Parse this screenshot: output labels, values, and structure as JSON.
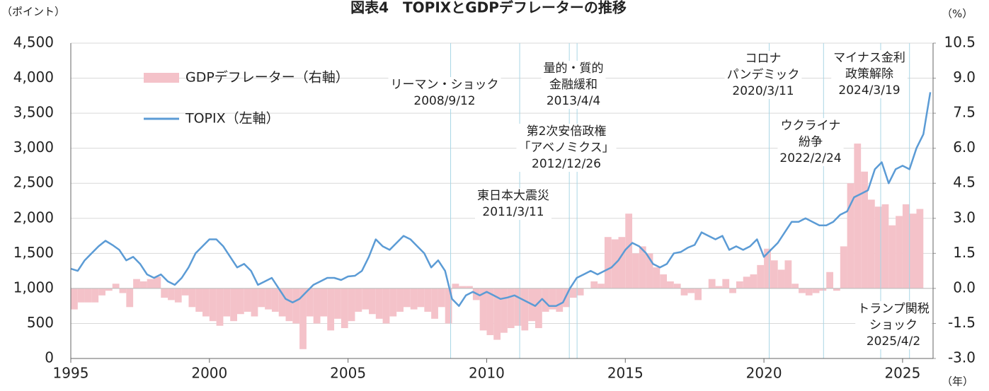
{
  "chart_data": {
    "type": "bar-line",
    "title": "図表4　TOPIXとGDPデフレーターの推移",
    "y_label": "（ポイント）",
    "y2_label": "（%）",
    "x_label": "（年）",
    "xlim": [
      1995,
      2026.1
    ],
    "xticks": [
      1995,
      2000,
      2005,
      2010,
      2015,
      2020,
      2025
    ],
    "ylim": [
      0,
      4500
    ],
    "yticks": [
      0,
      500,
      {
        "value": 1000,
        "label": "1,000"
      },
      {
        "value": 1500,
        "label": "1,500"
      },
      {
        "value": 2000,
        "label": "2,000"
      },
      {
        "value": 2500,
        "label": "2,500"
      },
      {
        "value": 3000,
        "label": "3,000"
      },
      {
        "value": 3500,
        "label": "3,500"
      },
      {
        "value": 4000,
        "label": "4,000"
      },
      {
        "value": 4500,
        "label": "4,500"
      }
    ],
    "y2lim": [
      -3,
      10.5
    ],
    "y2ticks": [
      {
        "value": -3,
        "label": "-3.0"
      },
      -1.5,
      {
        "value": 0,
        "label": "0.0"
      },
      1.5,
      {
        "value": 3,
        "label": "3.0"
      },
      4.5,
      {
        "value": 6,
        "label": "6.0"
      },
      7.5,
      {
        "value": 9,
        "label": "9.0"
      },
      10.5
    ],
    "grid": true,
    "series": [
      {
        "name": "GDPデフレーター（右軸）",
        "type": "bar",
        "axis": "y2",
        "color": "#f4c2c9",
        "x": [
          1995,
          1995.25,
          1995.5,
          1995.75,
          1996,
          1996.25,
          1996.5,
          1996.75,
          1997,
          1997.25,
          1997.5,
          1997.75,
          1998,
          1998.25,
          1998.5,
          1998.75,
          1999,
          1999.25,
          1999.5,
          1999.75,
          2000,
          2000.25,
          2000.5,
          2000.75,
          2001,
          2001.25,
          2001.5,
          2001.75,
          2002,
          2002.25,
          2002.5,
          2002.75,
          2003,
          2003.25,
          2003.5,
          2003.75,
          2004,
          2004.25,
          2004.5,
          2004.75,
          2005,
          2005.25,
          2005.5,
          2005.75,
          2006,
          2006.25,
          2006.5,
          2006.75,
          2007,
          2007.25,
          2007.5,
          2007.75,
          2008,
          2008.25,
          2008.5,
          2008.75,
          2009,
          2009.25,
          2009.5,
          2009.75,
          2010,
          2010.25,
          2010.5,
          2010.75,
          2011,
          2011.25,
          2011.5,
          2011.75,
          2012,
          2012.25,
          2012.5,
          2012.75,
          2013,
          2013.25,
          2013.5,
          2013.75,
          2014,
          2014.25,
          2014.5,
          2014.75,
          2015,
          2015.25,
          2015.5,
          2015.75,
          2016,
          2016.25,
          2016.5,
          2016.75,
          2017,
          2017.25,
          2017.5,
          2017.75,
          2018,
          2018.25,
          2018.5,
          2018.75,
          2019,
          2019.25,
          2019.5,
          2019.75,
          2020,
          2020.25,
          2020.5,
          2020.75,
          2021,
          2021.25,
          2021.5,
          2021.75,
          2022,
          2022.25,
          2022.5,
          2022.75,
          2023,
          2023.25,
          2023.5,
          2023.75,
          2024,
          2024.25,
          2024.5,
          2024.75,
          2025,
          2025.25,
          2025.5
        ],
        "values": [
          -0.9,
          -0.6,
          -0.6,
          -0.6,
          -0.3,
          -0.1,
          0.2,
          -0.2,
          -0.8,
          0.4,
          0.3,
          0.4,
          0.5,
          -0.4,
          -0.5,
          -0.6,
          -0.3,
          -0.8,
          -1.0,
          -1.2,
          -1.4,
          -1.6,
          -1.2,
          -1.4,
          -1.1,
          -1.0,
          -1.2,
          -0.8,
          -0.9,
          -1.0,
          -1.2,
          -1.4,
          -1.5,
          -2.6,
          -1.2,
          -1.5,
          -1.2,
          -1.8,
          -1.3,
          -1.7,
          -1.4,
          -1.0,
          -0.9,
          -1.1,
          -1.3,
          -1.5,
          -1.2,
          -1.0,
          -0.8,
          -0.9,
          -0.8,
          -1.0,
          -1.3,
          -0.8,
          -1.5,
          0.2,
          0.1,
          0.1,
          -0.5,
          -1.8,
          -2.0,
          -2.2,
          -1.9,
          -1.7,
          -1.6,
          -1.8,
          -1.4,
          -1.7,
          -1.0,
          -0.9,
          -1.0,
          -0.8,
          -0.4,
          -0.3,
          0.0,
          0.3,
          0.2,
          2.2,
          2.1,
          2.2,
          3.2,
          1.5,
          1.8,
          1.5,
          0.9,
          0.6,
          0.3,
          0.2,
          -0.3,
          -0.2,
          -0.5,
          0.0,
          0.4,
          0.1,
          0.4,
          -0.2,
          0.3,
          0.5,
          0.6,
          1.0,
          1.7,
          1.2,
          0.8,
          1.2,
          0.2,
          -0.2,
          -0.3,
          -0.2,
          -0.1,
          0.7,
          -0.1,
          1.8,
          4.5,
          6.2,
          5.0,
          3.8,
          3.5,
          3.6,
          2.7,
          3.1,
          3.6,
          3.2,
          3.4
        ]
      },
      {
        "name": "TOPIX（左軸）",
        "type": "line",
        "axis": "y",
        "color": "#5b9bd5",
        "x": [
          1995,
          1995.25,
          1995.5,
          1995.75,
          1996,
          1996.25,
          1996.5,
          1996.75,
          1997,
          1997.25,
          1997.5,
          1997.75,
          1998,
          1998.25,
          1998.5,
          1998.75,
          1999,
          1999.25,
          1999.5,
          1999.75,
          2000,
          2000.25,
          2000.5,
          2000.75,
          2001,
          2001.25,
          2001.5,
          2001.75,
          2002,
          2002.25,
          2002.5,
          2002.75,
          2003,
          2003.25,
          2003.5,
          2003.75,
          2004,
          2004.25,
          2004.5,
          2004.75,
          2005,
          2005.25,
          2005.5,
          2005.75,
          2006,
          2006.25,
          2006.5,
          2006.75,
          2007,
          2007.25,
          2007.5,
          2007.75,
          2008,
          2008.25,
          2008.5,
          2008.75,
          2009,
          2009.25,
          2009.5,
          2009.75,
          2010,
          2010.25,
          2010.5,
          2010.75,
          2011,
          2011.25,
          2011.5,
          2011.75,
          2012,
          2012.25,
          2012.5,
          2012.75,
          2013,
          2013.25,
          2013.5,
          2013.75,
          2014,
          2014.25,
          2014.5,
          2014.75,
          2015,
          2015.25,
          2015.5,
          2015.75,
          2016,
          2016.25,
          2016.5,
          2016.75,
          2017,
          2017.25,
          2017.5,
          2017.75,
          2018,
          2018.25,
          2018.5,
          2018.75,
          2019,
          2019.25,
          2019.5,
          2019.75,
          2020,
          2020.25,
          2020.5,
          2020.75,
          2021,
          2021.25,
          2021.5,
          2021.75,
          2022,
          2022.25,
          2022.5,
          2022.75,
          2023,
          2023.25,
          2023.5,
          2023.75,
          2024,
          2024.25,
          2024.5,
          2024.75,
          2025,
          2025.25,
          2025.5,
          2025.75,
          2026
        ],
        "values": [
          1280,
          1250,
          1400,
          1500,
          1600,
          1680,
          1620,
          1550,
          1400,
          1450,
          1350,
          1200,
          1150,
          1200,
          1100,
          1050,
          1150,
          1300,
          1500,
          1600,
          1700,
          1700,
          1600,
          1450,
          1300,
          1350,
          1250,
          1050,
          1100,
          1150,
          1000,
          850,
          800,
          850,
          950,
          1050,
          1100,
          1150,
          1150,
          1120,
          1170,
          1180,
          1250,
          1450,
          1700,
          1600,
          1550,
          1650,
          1750,
          1700,
          1600,
          1500,
          1300,
          1400,
          1250,
          850,
          750,
          900,
          950,
          900,
          950,
          900,
          850,
          870,
          900,
          850,
          800,
          750,
          850,
          750,
          750,
          800,
          1000,
          1150,
          1200,
          1250,
          1200,
          1250,
          1300,
          1400,
          1550,
          1650,
          1600,
          1500,
          1350,
          1300,
          1350,
          1500,
          1520,
          1580,
          1620,
          1800,
          1750,
          1700,
          1750,
          1550,
          1600,
          1550,
          1600,
          1700,
          1450,
          1550,
          1650,
          1800,
          1950,
          1950,
          2000,
          1950,
          1900,
          1900,
          1950,
          2050,
          2100,
          2300,
          2350,
          2400,
          2700,
          2800,
          2500,
          2700,
          2750,
          2700,
          3000,
          3200,
          3800
        ]
      }
    ],
    "annotations": [
      {
        "text": [
          "リーマン・ショック",
          "2008/9/12"
        ],
        "x": 2008.7
      },
      {
        "text": [
          "東日本大震災",
          "2011/3/11"
        ],
        "x": 2011.19
      },
      {
        "text": [
          "第2次安倍政権",
          "「アベノミクス」",
          "2012/12/26"
        ],
        "x": 2012.98
      },
      {
        "text": [
          "量的・質的",
          "金融緩和",
          "2013/4/4"
        ],
        "x": 2013.26
      },
      {
        "text": [
          "コロナ",
          "パンデミック",
          "2020/3/11"
        ],
        "x": 2020.19
      },
      {
        "text": [
          "ウクライナ",
          "紛争",
          "2022/2/24"
        ],
        "x": 2022.15
      },
      {
        "text": [
          "マイナス金利",
          "政策解除",
          "2024/3/19"
        ],
        "x": 2024.21
      },
      {
        "text": [
          "トランプ関税",
          "ショック",
          "2025/4/2"
        ],
        "x": 2025.25
      }
    ]
  }
}
